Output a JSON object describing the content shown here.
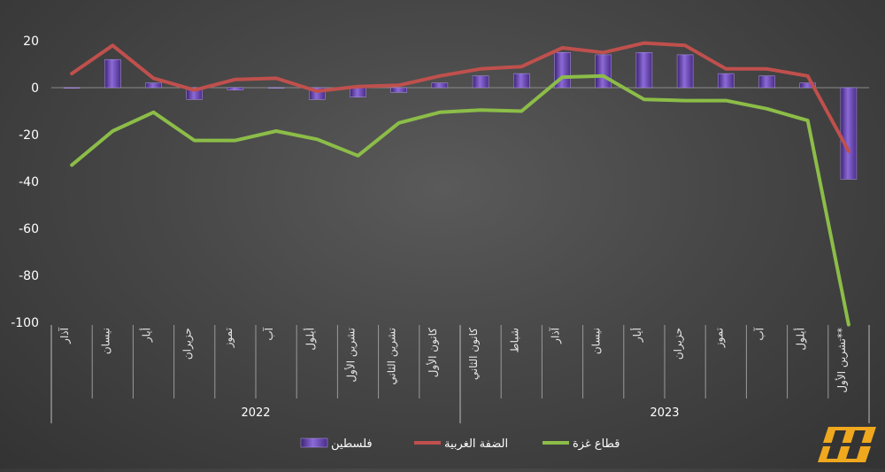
{
  "chart_data": {
    "type": "bar",
    "categories": [
      "آذار",
      "نيسان",
      "أيار",
      "حزيران",
      "تموز",
      "آب",
      "أيلول",
      "تشرين الأول",
      "تشرين الثاني",
      "كانون الأول",
      "كانون الثاني",
      "شباط",
      "آذار",
      "نيسان",
      "أيار",
      "حزيران",
      "تموز",
      "آب",
      "أيلول",
      "تشرين الأول**"
    ],
    "groups": [
      {
        "label": "2022",
        "count": 10
      },
      {
        "label": "2023",
        "count": 10
      }
    ],
    "series": [
      {
        "name": "فلسطين",
        "type": "bar",
        "color": "#7a57c2",
        "values": [
          0,
          12,
          2,
          -5,
          -1,
          0,
          -5,
          -4,
          -2,
          2,
          5,
          6,
          15,
          14,
          15,
          14,
          6,
          5,
          2,
          -39
        ]
      },
      {
        "name": "الضفة الغربية",
        "type": "line",
        "color": "#c0504d",
        "values": [
          6,
          18,
          4,
          -1,
          3.5,
          4,
          -1.5,
          0.5,
          1,
          5,
          8,
          9,
          17,
          15,
          19,
          18,
          8,
          8,
          5,
          -27
        ]
      },
      {
        "name": "قطاع غزة",
        "type": "line",
        "color": "#8cbd48",
        "values": [
          -33,
          -18.5,
          -10.5,
          -22.5,
          -22.5,
          -18.5,
          -22,
          -29,
          -15,
          -10.5,
          -9.5,
          -10,
          4.5,
          5,
          -5,
          -5.5,
          -5.5,
          -9,
          -14,
          -101
        ]
      }
    ],
    "ylim": [
      -100,
      20
    ],
    "yticks": [
      20,
      0,
      -20,
      -40,
      -60,
      -80,
      -100
    ],
    "grid": false,
    "legend_position": "bottom"
  }
}
